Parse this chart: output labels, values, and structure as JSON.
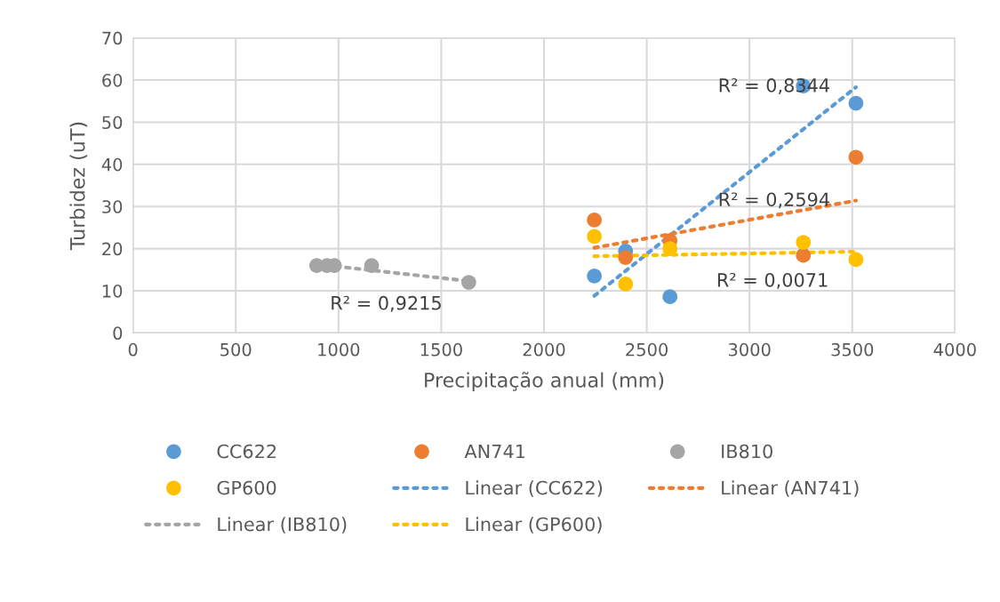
{
  "chart_data": {
    "type": "scatter",
    "xlabel": "Precipitação anual (mm)",
    "ylabel": "Turbidez (uT)",
    "xlim": [
      0,
      4000
    ],
    "xticks": [
      0,
      500,
      1000,
      1500,
      2000,
      2500,
      3000,
      3500,
      4000
    ],
    "ylim": [
      0,
      70
    ],
    "yticks": [
      0,
      10,
      20,
      30,
      40,
      50,
      60,
      70
    ],
    "grid": true,
    "legend": "bottom",
    "marker": "circle",
    "series": [
      {
        "name": "CC622",
        "color": "#5b9bd5",
        "x": [
          2245,
          2397,
          2613,
          3262,
          3518
        ],
        "values": [
          13.5,
          19.4,
          8.6,
          58.6,
          54.5
        ]
      },
      {
        "name": "AN741",
        "color": "#ed7d31",
        "x": [
          2245,
          2397,
          2613,
          3262,
          3518
        ],
        "values": [
          26.8,
          17.9,
          21.9,
          18.4,
          41.7
        ]
      },
      {
        "name": "IB810",
        "color": "#a5a5a5",
        "x": [
          894,
          944,
          980,
          1161,
          1634
        ],
        "values": [
          16.0,
          16.0,
          16.0,
          16.0,
          12.0
        ]
      },
      {
        "name": "GP600",
        "color": "#ffc000",
        "x": [
          2245,
          2397,
          2613,
          3262,
          3518
        ],
        "values": [
          22.9,
          11.6,
          20.0,
          21.5,
          17.4
        ]
      },
      {
        "name": "Linear (CC622)",
        "type": "line",
        "marker": "none",
        "line_style": "dotted",
        "color": "#5b9bd5",
        "x": [
          2245,
          3518
        ],
        "values": [
          8.8,
          58.3
        ]
      },
      {
        "name": "Linear (AN741)",
        "type": "line",
        "marker": "none",
        "line_style": "dotted",
        "color": "#ed7d31",
        "x": [
          2245,
          3518
        ],
        "values": [
          20.2,
          31.4
        ]
      },
      {
        "name": "Linear (IB810)",
        "type": "line",
        "marker": "none",
        "line_style": "dotted",
        "color": "#a5a5a5",
        "x": [
          894,
          1634
        ],
        "values": [
          16.3,
          12.3
        ]
      },
      {
        "name": "Linear (GP600)",
        "type": "line",
        "marker": "none",
        "line_style": "dotted",
        "color": "#ffc000",
        "x": [
          2245,
          3518
        ],
        "values": [
          18.2,
          19.3
        ]
      }
    ],
    "annotations": [
      "R² = 0,8344",
      "R² = 0,2594",
      "R² = 0,0071",
      "R² = 0,9215"
    ]
  }
}
